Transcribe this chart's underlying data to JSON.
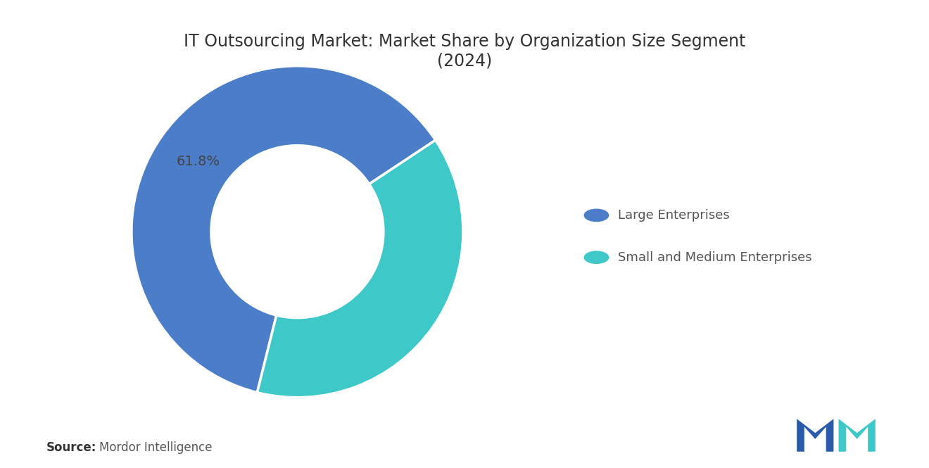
{
  "title": "IT Outsourcing Market: Market Share by Organization Size Segment\n(2024)",
  "segments": [
    {
      "label": "Large Enterprises",
      "value": 61.8,
      "color": "#4C7DC9"
    },
    {
      "label": "Small and Medium Enterprises",
      "value": 38.2,
      "color": "#3EC8C8"
    }
  ],
  "label_text": "61.8%",
  "source_bold": "Source:",
  "source_text": "Mordor Intelligence",
  "background_color": "#FFFFFF",
  "title_fontsize": 17,
  "legend_fontsize": 13,
  "source_fontsize": 12,
  "start_angle": 256,
  "donut_width": 0.48
}
